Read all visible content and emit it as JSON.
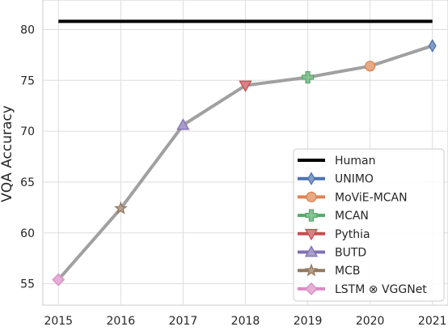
{
  "chart_data": {
    "type": "line",
    "xlabel": "",
    "ylabel": "VQA Accuracy",
    "x_ticks": [
      "2015",
      "2016",
      "2017",
      "2018",
      "2019",
      "2020",
      "2021"
    ],
    "y_ticks": [
      "55",
      "60",
      "65",
      "70",
      "75",
      "80"
    ],
    "xlim": [
      2014.75,
      2021.25
    ],
    "ylim": [
      52.9,
      82.9
    ],
    "grid": true,
    "legend_position": "bottom-right",
    "human": {
      "name": "Human",
      "value": 80.8,
      "x_range": [
        2015,
        2021
      ],
      "color": "#000000"
    },
    "trend": {
      "x": [
        2015,
        2016,
        2017,
        2018,
        2019,
        2020,
        2021
      ],
      "y": [
        55.4,
        62.4,
        70.6,
        74.5,
        75.3,
        76.4,
        78.4
      ],
      "color": "#a0a0a0"
    },
    "models": [
      {
        "name": "UNIMO",
        "x": 2021,
        "y": 78.4,
        "marker": "thin-diamond",
        "color": "#4c72b0"
      },
      {
        "name": "MoViE-MCAN",
        "x": 2020,
        "y": 76.4,
        "marker": "circle",
        "color": "#dd8452"
      },
      {
        "name": "MCAN",
        "x": 2019,
        "y": 75.3,
        "marker": "plus",
        "color": "#55a868"
      },
      {
        "name": "Pythia",
        "x": 2018,
        "y": 74.5,
        "marker": "triangle-down",
        "color": "#c44e52"
      },
      {
        "name": "BUTD",
        "x": 2017,
        "y": 70.6,
        "marker": "triangle-up",
        "color": "#8172b3"
      },
      {
        "name": "MCB",
        "x": 2016,
        "y": 62.4,
        "marker": "star",
        "color": "#937860"
      },
      {
        "name": "LSTM ⊗ VGGNet",
        "x": 2015,
        "y": 55.4,
        "marker": "diamond",
        "color": "#da8bc3"
      }
    ]
  }
}
